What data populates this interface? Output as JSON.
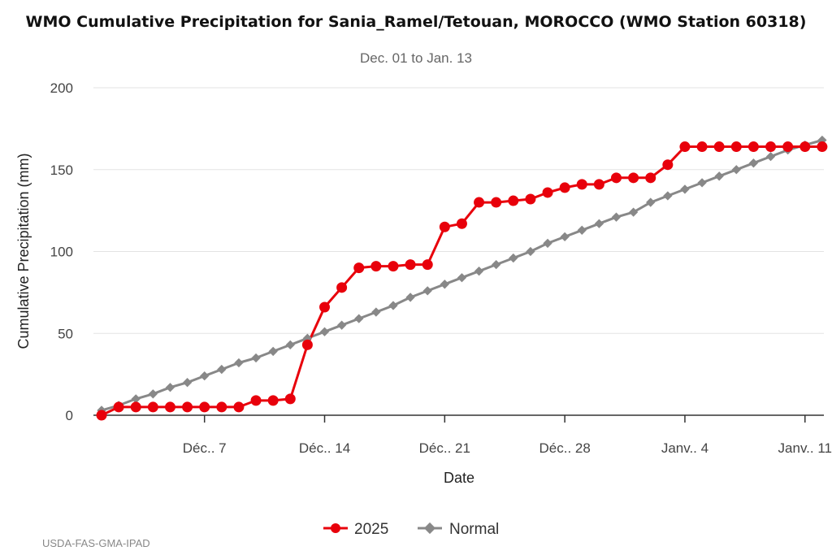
{
  "chart_data": {
    "type": "line",
    "title": "WMO Cumulative Precipitation for Sania_Ramel/Tetouan, MOROCCO (WMO Station 60318)",
    "subtitle": "Dec. 01 to Jan. 13",
    "xlabel": "Date",
    "ylabel": "Cumulative Precipitation (mm)",
    "ylim": [
      0,
      200
    ],
    "xlim": [
      1,
      43.1
    ],
    "yticks": [
      0,
      50,
      100,
      150,
      200
    ],
    "xticks": [
      {
        "day": 7,
        "label": "Déc.. 7"
      },
      {
        "day": 14,
        "label": "Déc.. 14"
      },
      {
        "day": 21,
        "label": "Déc.. 21"
      },
      {
        "day": 28,
        "label": "Déc.. 28"
      },
      {
        "day": 35,
        "label": "Janv.. 4"
      },
      {
        "day": 42,
        "label": "Janv.. 11"
      }
    ],
    "grid": true,
    "legend_position": "bottom",
    "series": [
      {
        "name": "2025",
        "color": "#e8000b",
        "marker": "circle",
        "x": [
          1,
          2,
          3,
          4,
          5,
          6,
          7,
          8,
          9,
          10,
          11,
          12,
          13,
          14,
          15,
          16,
          17,
          18,
          19,
          20,
          21,
          22,
          23,
          24,
          25,
          26,
          27,
          28,
          29,
          30,
          31,
          32,
          33,
          34,
          35,
          36,
          37,
          38,
          39,
          40,
          41,
          42,
          43
        ],
        "values": [
          0,
          5,
          5,
          5,
          5,
          5,
          5,
          5,
          5,
          9,
          9,
          10,
          43,
          66,
          78,
          90,
          91,
          91,
          92,
          92,
          115,
          117,
          130,
          130,
          131,
          132,
          136,
          139,
          141,
          141,
          145,
          145,
          145,
          153,
          164,
          164,
          164,
          164,
          164,
          164,
          164,
          164,
          164
        ]
      },
      {
        "name": "Normal",
        "color": "#888888",
        "marker": "diamond",
        "x": [
          1,
          2,
          3,
          4,
          5,
          6,
          7,
          8,
          9,
          10,
          11,
          12,
          13,
          14,
          15,
          16,
          17,
          18,
          19,
          20,
          21,
          22,
          23,
          24,
          25,
          26,
          27,
          28,
          29,
          30,
          31,
          32,
          33,
          34,
          35,
          36,
          37,
          38,
          39,
          40,
          41,
          42,
          43
        ],
        "values": [
          3,
          6,
          10,
          13,
          17,
          20,
          24,
          28,
          32,
          35,
          39,
          43,
          47,
          51,
          55,
          59,
          63,
          67,
          72,
          76,
          80,
          84,
          88,
          92,
          96,
          100,
          105,
          109,
          113,
          117,
          121,
          124,
          130,
          134,
          138,
          142,
          146,
          150,
          154,
          158,
          162,
          165,
          168
        ]
      }
    ]
  },
  "credit": "USDA-FAS-GMA-IPAD"
}
